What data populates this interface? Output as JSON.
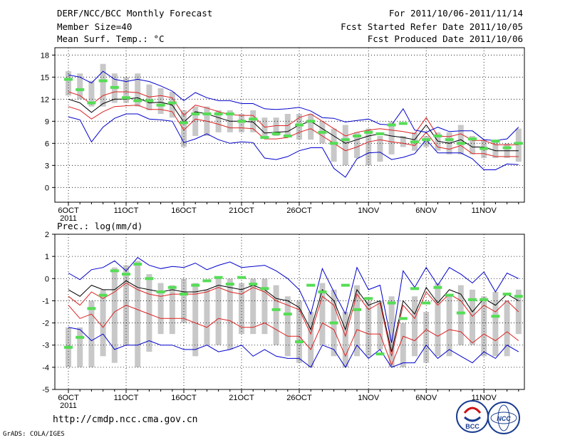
{
  "header": {
    "title": "DERF/NCC/BCC Monthly Forecast",
    "member_size": "Member Size=40",
    "variable": "Mean Surf. Temp.: °C",
    "period": "For 2011/10/06-2011/11/14",
    "started": "Fcst Started Refer Date 2011/10/05",
    "produced": "Fcst Produced Date 2011/10/06"
  },
  "footer": {
    "url": "http://cmdp.ncc.cma.gov.cn",
    "grads": "GrADS: COLA/IGES",
    "logo_bcc": "BCC",
    "logo_ncc": "NCC"
  },
  "colors": {
    "box": "#c8c8c8",
    "obs": "#55dd55",
    "mean": "#000000",
    "spread": "#dd2222",
    "envelope": "#0000cc",
    "grid": "#000000"
  },
  "chart_data": [
    {
      "type": "line",
      "title": "Mean Surf. Temp.: °C",
      "xlabel": "",
      "ylabel": "°C",
      "ylim": [
        -2,
        19
      ],
      "yticks": [
        0,
        3,
        6,
        9,
        12,
        15,
        18
      ],
      "xticks": [
        {
          "day": 1,
          "label": "6OCT",
          "sub": "2011"
        },
        {
          "day": 6,
          "label": "11OCT",
          "sub": ""
        },
        {
          "day": 11,
          "label": "16OCT",
          "sub": ""
        },
        {
          "day": 16,
          "label": "21OCT",
          "sub": ""
        },
        {
          "day": 21,
          "label": "26OCT",
          "sub": ""
        },
        {
          "day": 27,
          "label": "1NOV",
          "sub": ""
        },
        {
          "day": 32,
          "label": "6NOV",
          "sub": ""
        },
        {
          "day": 37,
          "label": "11NOV",
          "sub": ""
        }
      ],
      "days": 40,
      "box_low": [
        12.5,
        12.0,
        11.0,
        11.0,
        11.5,
        11.5,
        11.0,
        10.5,
        10.0,
        9.5,
        5.5,
        7.0,
        7.0,
        7.5,
        7.5,
        7.5,
        7.5,
        7.0,
        7.0,
        7.0,
        6.5,
        6.5,
        6.0,
        3.5,
        3.0,
        4.0,
        3.0,
        3.5,
        4.5,
        5.5,
        5.0,
        5.5,
        5.0,
        4.5,
        4.5,
        4.5,
        4.0,
        4.0,
        4.0,
        3.5
      ],
      "box_high": [
        15.8,
        15.5,
        14.5,
        16.8,
        15.5,
        15.0,
        15.5,
        14.0,
        13.5,
        13.0,
        10.5,
        11.0,
        11.0,
        10.5,
        10.5,
        10.0,
        10.5,
        9.5,
        9.5,
        10.0,
        10.0,
        10.0,
        9.0,
        8.0,
        8.5,
        7.5,
        8.0,
        7.0,
        9.0,
        7.0,
        7.5,
        7.0,
        7.5,
        7.5,
        8.5,
        7.0,
        6.5,
        6.5,
        6.0,
        8.0
      ],
      "series": [
        {
          "name": "ensemble-mean",
          "values": [
            12.0,
            11.5,
            10.2,
            11.4,
            12.0,
            12.0,
            12.2,
            11.5,
            11.6,
            11.2,
            8.9,
            10.3,
            10.0,
            9.5,
            9.0,
            9.0,
            8.9,
            7.4,
            7.5,
            7.6,
            8.5,
            9.0,
            8.0,
            7.0,
            6.0,
            6.5,
            7.0,
            7.3,
            7.0,
            6.8,
            6.5,
            8.5,
            6.3,
            6.0,
            6.5,
            5.5,
            5.5,
            5.0,
            5.0,
            5.0
          ]
        },
        {
          "name": "spread-upper",
          "values": [
            13.0,
            12.5,
            11.3,
            12.5,
            13.0,
            13.0,
            12.9,
            12.3,
            12.5,
            12.2,
            9.8,
            11.2,
            10.8,
            10.3,
            9.9,
            9.8,
            9.8,
            8.2,
            8.4,
            8.4,
            9.5,
            10.0,
            9.0,
            8.0,
            7.0,
            7.5,
            7.8,
            8.0,
            7.8,
            7.6,
            7.3,
            9.5,
            7.0,
            6.9,
            7.3,
            6.4,
            6.4,
            5.8,
            5.8,
            5.8
          ]
        },
        {
          "name": "spread-lower",
          "values": [
            11.0,
            10.5,
            9.3,
            10.3,
            11.0,
            11.1,
            11.2,
            10.6,
            10.6,
            10.3,
            7.8,
            9.3,
            9.0,
            8.6,
            8.1,
            8.1,
            8.0,
            6.6,
            6.6,
            6.8,
            7.5,
            8.0,
            7.0,
            6.0,
            5.0,
            5.5,
            6.2,
            6.5,
            6.2,
            6.0,
            5.7,
            7.5,
            5.5,
            5.2,
            5.7,
            4.6,
            4.6,
            4.2,
            4.2,
            4.2
          ]
        },
        {
          "name": "max-envelope",
          "values": [
            15.3,
            15.0,
            14.2,
            15.8,
            14.7,
            14.4,
            14.7,
            14.4,
            13.8,
            13.1,
            11.8,
            12.9,
            12.2,
            11.8,
            11.8,
            11.4,
            11.4,
            10.7,
            10.6,
            10.7,
            10.9,
            10.4,
            9.5,
            9.4,
            8.9,
            9.1,
            9.3,
            8.6,
            8.5,
            10.7,
            7.8,
            7.5,
            8.2,
            7.6,
            7.7,
            7.7,
            6.5,
            6.4,
            6.6,
            8.2
          ]
        },
        {
          "name": "min-envelope",
          "values": [
            9.6,
            9.2,
            6.2,
            8.2,
            9.4,
            10.0,
            10.0,
            9.3,
            9.2,
            9.0,
            6.1,
            6.6,
            7.3,
            6.5,
            6.0,
            6.2,
            6.1,
            4.0,
            3.8,
            4.2,
            5.0,
            5.4,
            5.4,
            2.6,
            1.4,
            3.9,
            4.7,
            4.8,
            3.8,
            4.1,
            4.6,
            6.5,
            4.7,
            4.7,
            4.7,
            3.9,
            2.4,
            2.4,
            3.2,
            3.1
          ]
        },
        {
          "name": "observed",
          "values": [
            14.7,
            13.3,
            11.5,
            14.5,
            13.6,
            12.2,
            11.8,
            11.8,
            11.2,
            11.5,
            8.8,
            10.0,
            10.0,
            10.0,
            10.0,
            9.0,
            9.3,
            6.8,
            7.3,
            7.0,
            8.5,
            9.0,
            7.5,
            6.0,
            6.5,
            7.0,
            7.5,
            7.3,
            8.5,
            8.7,
            6.2,
            6.5,
            7.0,
            6.5,
            6.0,
            6.6,
            5.3,
            6.3,
            5.4,
            6.0
          ]
        }
      ]
    },
    {
      "type": "line",
      "title": "Prec.: log(mm/d)",
      "xlabel": "",
      "ylabel": "log(mm/d)",
      "ylim": [
        -5,
        2
      ],
      "yticks": [
        -5,
        -4,
        -3,
        -2,
        -1,
        0,
        1,
        2
      ],
      "xticks": [
        {
          "day": 1,
          "label": "6OCT",
          "sub": "2011"
        },
        {
          "day": 6,
          "label": "11OCT",
          "sub": ""
        },
        {
          "day": 11,
          "label": "16OCT",
          "sub": ""
        },
        {
          "day": 16,
          "label": "21OCT",
          "sub": ""
        },
        {
          "day": 21,
          "label": "26OCT",
          "sub": ""
        },
        {
          "day": 27,
          "label": "1NOV",
          "sub": ""
        },
        {
          "day": 32,
          "label": "6NOV",
          "sub": ""
        },
        {
          "day": 37,
          "label": "11NOV",
          "sub": ""
        }
      ],
      "days": 40,
      "box_low": [
        -4.0,
        -4.0,
        -4.0,
        -3.5,
        -3.8,
        -3.0,
        -4.0,
        -3.3,
        -2.5,
        -2.5,
        -2.0,
        -3.5,
        -3.0,
        -3.0,
        -3.2,
        -2.5,
        -2.5,
        -2.5,
        -3.0,
        -3.5,
        -3.8,
        -4.0,
        -3.0,
        -3.5,
        -4.0,
        -3.5,
        -3.5,
        -3.2,
        -4.0,
        -4.0,
        -3.5,
        -3.8,
        -3.5,
        -3.5,
        -3.0,
        -3.0,
        -3.5,
        -3.5,
        -3.5,
        -2.5
      ],
      "box_high": [
        -2.2,
        -2.2,
        -1.0,
        -0.5,
        0.5,
        0.6,
        0.8,
        0.2,
        -0.2,
        -0.3,
        0.0,
        -0.2,
        -0.5,
        0.0,
        0.0,
        -0.2,
        0.0,
        0.0,
        -0.3,
        -0.8,
        -1.0,
        -1.5,
        -0.2,
        -0.5,
        -1.5,
        -0.3,
        -1.0,
        -1.0,
        -0.8,
        -2.0,
        -0.8,
        -1.5,
        -0.2,
        -0.8,
        -0.3,
        -0.5,
        -0.8,
        -0.6,
        -1.0,
        -0.5
      ],
      "series": [
        {
          "name": "ensemble-mean",
          "values": [
            -0.5,
            -0.8,
            -0.3,
            -0.5,
            -0.5,
            -0.1,
            -0.4,
            -0.5,
            -0.6,
            -0.5,
            -0.6,
            -0.6,
            -0.5,
            -0.3,
            -0.4,
            -0.5,
            -0.3,
            -0.5,
            -0.9,
            -1.0,
            -1.3,
            -2.3,
            -0.5,
            -1.0,
            -2.3,
            -0.5,
            -1.2,
            -1.0,
            -3.3,
            -1.0,
            -1.6,
            -0.4,
            -1.1,
            -0.5,
            -0.7,
            -1.5,
            -0.9,
            -1.2,
            -0.7,
            -1.0
          ]
        },
        {
          "name": "spread-upper",
          "values": [
            -0.8,
            -1.2,
            -0.6,
            -0.9,
            -0.6,
            -0.2,
            -0.5,
            -0.7,
            -0.8,
            -0.7,
            -0.7,
            -0.7,
            -0.6,
            -0.4,
            -0.6,
            -0.7,
            -0.4,
            -0.6,
            -1.0,
            -1.2,
            -1.4,
            -2.5,
            -0.8,
            -1.2,
            -2.6,
            -0.7,
            -1.4,
            -1.1,
            -3.5,
            -1.2,
            -1.8,
            -0.6,
            -1.2,
            -0.7,
            -1.0,
            -1.7,
            -1.2,
            -1.5,
            -1.0,
            -1.5
          ]
        },
        {
          "name": "spread-lower",
          "values": [
            -1.2,
            -1.8,
            -1.6,
            -2.2,
            -1.5,
            -1.2,
            -1.4,
            -1.6,
            -1.8,
            -1.8,
            -1.8,
            -2.0,
            -2.2,
            -1.8,
            -1.9,
            -2.2,
            -2.2,
            -2.0,
            -2.3,
            -2.6,
            -2.6,
            -3.2,
            -2.0,
            -2.3,
            -3.5,
            -2.3,
            -2.5,
            -2.5,
            -3.9,
            -2.6,
            -2.8,
            -2.3,
            -2.6,
            -2.3,
            -2.4,
            -2.9,
            -2.5,
            -2.8,
            -2.4,
            -2.8
          ]
        },
        {
          "name": "max-envelope",
          "values": [
            0.25,
            -0.05,
            0.4,
            0.5,
            0.8,
            0.35,
            0.95,
            0.6,
            0.45,
            0.55,
            0.5,
            0.7,
            0.4,
            0.6,
            0.75,
            0.5,
            0.55,
            0.6,
            0.35,
            0.0,
            -0.5,
            -1.6,
            0.45,
            -0.6,
            -1.6,
            0.5,
            -0.5,
            -0.3,
            -2.9,
            0.35,
            -0.4,
            0.5,
            -0.3,
            0.5,
            0.2,
            -0.2,
            0.3,
            -0.6,
            0.25,
            0.0
          ]
        },
        {
          "name": "min-envelope",
          "values": [
            -2.2,
            -2.3,
            -2.8,
            -2.5,
            -3.2,
            -3.0,
            -3.0,
            -2.8,
            -3.0,
            -3.0,
            -3.2,
            -3.2,
            -3.0,
            -3.3,
            -3.2,
            -3.0,
            -3.5,
            -3.2,
            -3.5,
            -3.6,
            -3.6,
            -4.0,
            -3.0,
            -3.2,
            -4.0,
            -3.0,
            -3.6,
            -3.2,
            -4.0,
            -3.8,
            -3.8,
            -3.0,
            -3.6,
            -3.2,
            -3.5,
            -3.8,
            -3.3,
            -3.6,
            -3.0,
            -3.3
          ]
        },
        {
          "name": "observed",
          "values": [
            -3.1,
            -2.65,
            -1.35,
            -0.75,
            0.35,
            0.2,
            0.65,
            0.0,
            -0.6,
            -0.4,
            -0.7,
            -0.3,
            -0.1,
            0.05,
            -0.25,
            0.05,
            -0.25,
            -0.45,
            -1.4,
            -1.6,
            -2.85,
            -0.3,
            -0.6,
            -2.0,
            -0.3,
            -1.4,
            -0.9,
            -3.4,
            -1.1,
            -1.8,
            -0.45,
            -1.1,
            -0.4,
            -0.75,
            -1.55,
            -0.95,
            -0.95,
            -1.7,
            -0.7,
            -0.8
          ]
        }
      ]
    }
  ]
}
